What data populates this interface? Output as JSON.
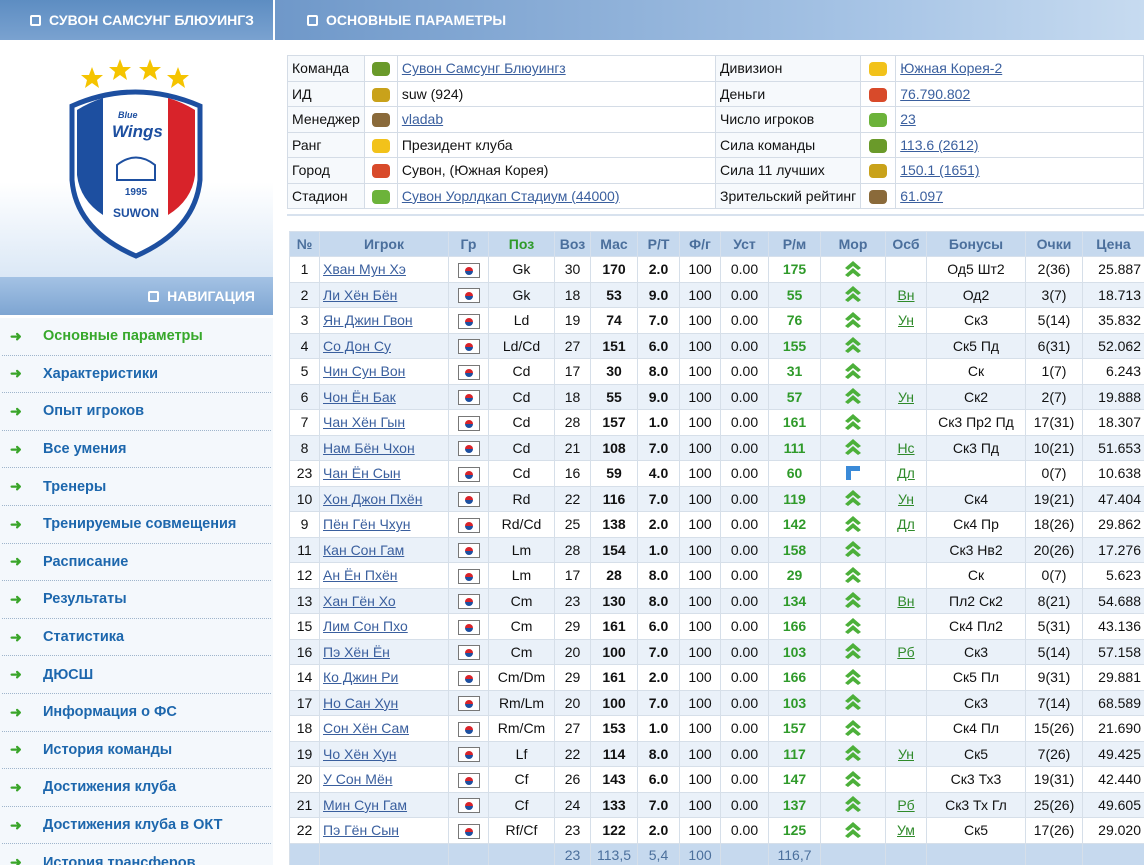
{
  "team_header": "СУВОН САМСУНГ БЛЮУИНГЗ",
  "logo": {
    "brand_small": "Blue",
    "brand": "Wings",
    "year": "1995",
    "city": "SUWON"
  },
  "navigation": {
    "title": "НАВИГАЦИЯ",
    "items": [
      "Основные параметры",
      "Характеристики",
      "Опыт игроков",
      "Все умения",
      "Тренеры",
      "Тренируемые совмещения",
      "Расписание",
      "Результаты",
      "Статистика",
      "ДЮСШ",
      "Информация о ФС",
      "История команды",
      "Достижения клуба",
      "Достижения клуба в ОКТ",
      "История трансферов"
    ]
  },
  "main_header": "ОСНОВНЫЕ ПАРАМЕТРЫ",
  "info": {
    "left": [
      {
        "label": "Команда",
        "value": "Сувон Самсунг Блюуингз",
        "link": true
      },
      {
        "label": "ИД",
        "value": "suw (924)"
      },
      {
        "label": "Менеджер",
        "value": "vladab",
        "link": true
      },
      {
        "label": "Ранг",
        "value": "Президент клуба"
      },
      {
        "label": "Город",
        "value": "Сувон, (Южная Корея)"
      },
      {
        "label": "Стадион",
        "value": "Сувон Уорлдкап Стадиум (44000)",
        "link": true
      }
    ],
    "right": [
      {
        "label": "Дивизион",
        "value": "Южная Корея-2",
        "link": true
      },
      {
        "label": "Деньги",
        "value": "76.790.802",
        "link": true
      },
      {
        "label": "Число игроков",
        "value": "23",
        "link": true
      },
      {
        "label": "Сила команды",
        "value": "113.6 (2612)",
        "link": true
      },
      {
        "label": "Сила 11 лучших",
        "value": "150.1 (1651)",
        "link": true
      },
      {
        "label": "Зрительский рейтинг",
        "value": "61.097",
        "link": true
      }
    ]
  },
  "players": {
    "columns": [
      "№",
      "Игрок",
      "Гр",
      "Поз",
      "Воз",
      "Мас",
      "Р/Т",
      "Ф/г",
      "Уст",
      "Р/м",
      "Мор",
      "Осб",
      "Бонусы",
      "Очки",
      "Цена"
    ],
    "rows": [
      {
        "num": "1",
        "name": "Хван Мун Хэ",
        "pos": "Gk",
        "age": "30",
        "mas": "170",
        "rt": "2.0",
        "fg": "100",
        "ust": "0.00",
        "rm": "175",
        "bonus": "Од5 Шт2",
        "points": "2(36)",
        "price": "25.887"
      },
      {
        "num": "2",
        "name": "Ли Хён Бён",
        "pos": "Gk",
        "age": "18",
        "mas": "53",
        "rt": "9.0",
        "fg": "100",
        "ust": "0.00",
        "rm": "55",
        "osb": "Вн",
        "bonus": "Од2",
        "points": "3(7)",
        "price": "18.713"
      },
      {
        "num": "3",
        "name": "Ян Джин Гвон",
        "pos": "Ld",
        "age": "19",
        "mas": "74",
        "rt": "7.0",
        "fg": "100",
        "ust": "0.00",
        "rm": "76",
        "osb": "Ун",
        "bonus": "Ск3",
        "points": "5(14)",
        "price": "35.832"
      },
      {
        "num": "4",
        "name": "Со Дон Су",
        "pos": "Ld/Cd",
        "age": "27",
        "mas": "151",
        "rt": "6.0",
        "fg": "100",
        "ust": "0.00",
        "rm": "155",
        "bonus": "Ск5 Пд",
        "points": "6(31)",
        "price": "52.062"
      },
      {
        "num": "5",
        "name": "Чин Сун Вон",
        "pos": "Cd",
        "age": "17",
        "mas": "30",
        "rt": "8.0",
        "fg": "100",
        "ust": "0.00",
        "rm": "31",
        "bonus": "Ск",
        "points": "1(7)",
        "price": "6.243"
      },
      {
        "num": "6",
        "name": "Чон Ён Бак",
        "pos": "Cd",
        "age": "18",
        "mas": "55",
        "rt": "9.0",
        "fg": "100",
        "ust": "0.00",
        "rm": "57",
        "osb": "Ун",
        "bonus": "Ск2",
        "points": "2(7)",
        "price": "19.888"
      },
      {
        "num": "7",
        "name": "Чан Хён Гын",
        "pos": "Cd",
        "age": "28",
        "mas": "157",
        "rt": "1.0",
        "fg": "100",
        "ust": "0.00",
        "rm": "161",
        "bonus": "Ск3 Пр2 Пд",
        "points": "17(31)",
        "price": "18.307"
      },
      {
        "num": "8",
        "name": "Нам Бён Чхон",
        "pos": "Cd",
        "age": "21",
        "mas": "108",
        "rt": "7.0",
        "fg": "100",
        "ust": "0.00",
        "rm": "111",
        "osb": "Нс",
        "bonus": "Ск3 Пд",
        "points": "10(21)",
        "price": "51.653"
      },
      {
        "num": "23",
        "name": "Чан Ён Сын",
        "pos": "Cd",
        "age": "16",
        "mas": "59",
        "rt": "4.0",
        "fg": "100",
        "ust": "0.00",
        "rm": "60",
        "osb": "Дл",
        "points": "0(7)",
        "price": "10.638"
      },
      {
        "num": "10",
        "name": "Хон Джон Пхён",
        "pos": "Rd",
        "age": "22",
        "mas": "116",
        "rt": "7.0",
        "fg": "100",
        "ust": "0.00",
        "rm": "119",
        "osb": "Ун",
        "bonus": "Ск4",
        "points": "19(21)",
        "price": "47.404"
      },
      {
        "num": "9",
        "name": "Пён Гён Чхун",
        "pos": "Rd/Cd",
        "age": "25",
        "mas": "138",
        "rt": "2.0",
        "fg": "100",
        "ust": "0.00",
        "rm": "142",
        "osb": "Дл",
        "bonus": "Ск4 Пр",
        "points": "18(26)",
        "price": "29.862"
      },
      {
        "num": "11",
        "name": "Кан Сон Гам",
        "pos": "Lm",
        "age": "28",
        "mas": "154",
        "rt": "1.0",
        "fg": "100",
        "ust": "0.00",
        "rm": "158",
        "bonus": "Ск3 Нв2",
        "points": "20(26)",
        "price": "17.276"
      },
      {
        "num": "12",
        "name": "Ан Ён Пхён",
        "pos": "Lm",
        "age": "17",
        "mas": "28",
        "rt": "8.0",
        "fg": "100",
        "ust": "0.00",
        "rm": "29",
        "bonus": "Ск",
        "points": "0(7)",
        "price": "5.623"
      },
      {
        "num": "13",
        "name": "Хан Гён Хо",
        "pos": "Cm",
        "age": "23",
        "mas": "130",
        "rt": "8.0",
        "fg": "100",
        "ust": "0.00",
        "rm": "134",
        "osb": "Вн",
        "bonus": "Пл2 Ск2",
        "points": "8(21)",
        "price": "54.688"
      },
      {
        "num": "15",
        "name": "Лим Сон Пхо",
        "pos": "Cm",
        "age": "29",
        "mas": "161",
        "rt": "6.0",
        "fg": "100",
        "ust": "0.00",
        "rm": "166",
        "bonus": "Ск4 Пл2",
        "points": "5(31)",
        "price": "43.136"
      },
      {
        "num": "16",
        "name": "Пэ Хён Ён",
        "pos": "Cm",
        "age": "20",
        "mas": "100",
        "rt": "7.0",
        "fg": "100",
        "ust": "0.00",
        "rm": "103",
        "osb": "Рб",
        "bonus": "Ск3",
        "points": "5(14)",
        "price": "57.158"
      },
      {
        "num": "14",
        "name": "Ко Джин Ри",
        "pos": "Cm/Dm",
        "age": "29",
        "mas": "161",
        "rt": "2.0",
        "fg": "100",
        "ust": "0.00",
        "rm": "166",
        "bonus": "Ск5 Пл",
        "points": "9(31)",
        "price": "29.881"
      },
      {
        "num": "17",
        "name": "Но Сан Хун",
        "pos": "Rm/Lm",
        "age": "20",
        "mas": "100",
        "rt": "7.0",
        "fg": "100",
        "ust": "0.00",
        "rm": "103",
        "bonus": "Ск3",
        "points": "7(14)",
        "price": "68.589"
      },
      {
        "num": "18",
        "name": "Сон Хён Сам",
        "pos": "Rm/Cm",
        "age": "27",
        "mas": "153",
        "rt": "1.0",
        "fg": "100",
        "ust": "0.00",
        "rm": "157",
        "bonus": "Ск4 Пл",
        "points": "15(26)",
        "price": "21.690"
      },
      {
        "num": "19",
        "name": "Чо Хён Хун",
        "pos": "Lf",
        "age": "22",
        "mas": "114",
        "rt": "8.0",
        "fg": "100",
        "ust": "0.00",
        "rm": "117",
        "osb": "Ун",
        "bonus": "Ск5",
        "points": "7(26)",
        "price": "49.425"
      },
      {
        "num": "20",
        "name": "У Сон Мён",
        "pos": "Cf",
        "age": "26",
        "mas": "143",
        "rt": "6.0",
        "fg": "100",
        "ust": "0.00",
        "rm": "147",
        "bonus": "Ск3 Тх3",
        "points": "19(31)",
        "price": "42.440"
      },
      {
        "num": "21",
        "name": "Мин Сун Гам",
        "pos": "Cf",
        "age": "24",
        "mas": "133",
        "rt": "7.0",
        "fg": "100",
        "ust": "0.00",
        "rm": "137",
        "osb": "Рб",
        "bonus": "Ск3 Тх Гл",
        "points": "25(26)",
        "price": "49.605"
      },
      {
        "num": "22",
        "name": "Пэ Гён Сын",
        "pos": "Rf/Cf",
        "age": "23",
        "mas": "122",
        "rt": "2.0",
        "fg": "100",
        "ust": "0.00",
        "rm": "125",
        "osb": "Ум",
        "bonus": "Ск5",
        "points": "17(26)",
        "price": "29.020"
      }
    ],
    "footer": {
      "age": "23",
      "mas": "113,5",
      "rt": "5,4",
      "fg": "100",
      "rm": "116,7"
    }
  }
}
